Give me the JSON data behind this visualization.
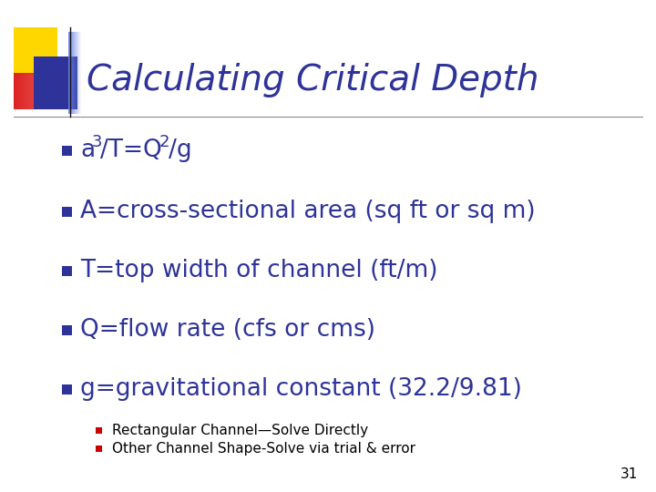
{
  "title": "Calculating Critical Depth",
  "title_color": "#2E3399",
  "title_fontsize": 28,
  "bg_color": "#FFFFFF",
  "bullet_color": "#2E3399",
  "bullet_items_plain": [
    "A=cross-sectional area (sq ft or sq m)",
    "T=top width of channel (ft/m)",
    "Q=flow rate (cfs or cms)",
    "g=gravitational constant (32.2/9.81)"
  ],
  "sub_bullet_items": [
    "Rectangular Channel—Solve Directly",
    "Other Channel Shape-Solve via trial & error"
  ],
  "bullet_square_color": "#2E3399",
  "sub_bullet_square_color": "#CC0000",
  "bullet_fontsize": 19,
  "sub_bullet_fontsize": 11,
  "page_number": "31",
  "deco_yellow": "#FFD700",
  "deco_red": "#DD2222",
  "deco_blue_dark": "#2E3399",
  "line_color": "#888888"
}
